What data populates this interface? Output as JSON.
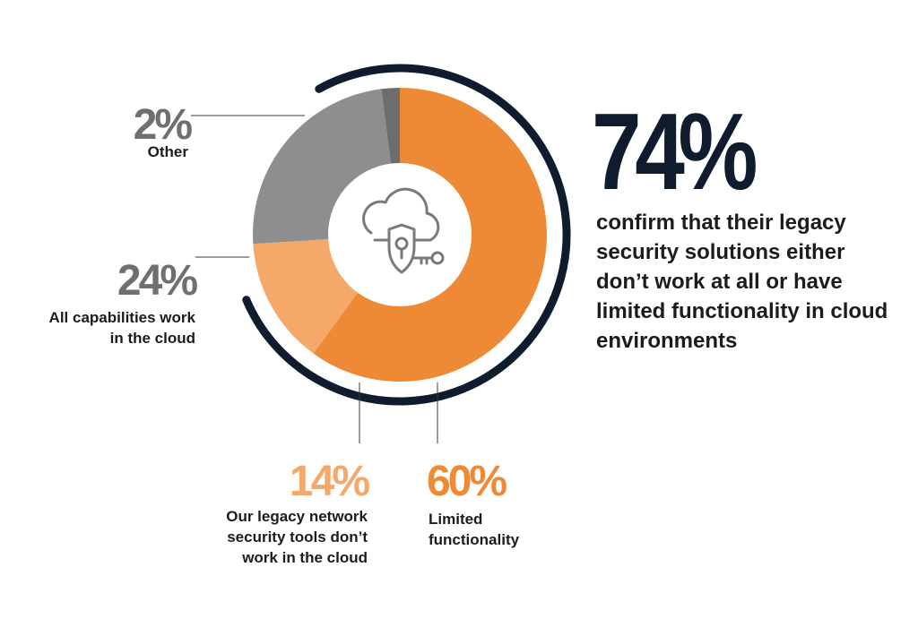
{
  "colors": {
    "orange_dark": "#ee8a35",
    "orange_light": "#f4a869",
    "gray_mid": "#8e8e8e",
    "gray_dark": "#6d6d6d",
    "navy": "#0f1c2e",
    "label_gray": "#6f6f6f"
  },
  "icon": "cloud-security-key-icon",
  "headline": {
    "stat": "74%",
    "text": "confirm that their legacy security solutions either don’t work at all or have limited functionality in cloud environments"
  },
  "chart_data": {
    "type": "pie",
    "title": "",
    "donut": true,
    "slices": [
      {
        "value": 60,
        "label": "60%",
        "description": "Limited functionality",
        "color": "#ee8a35"
      },
      {
        "value": 14,
        "label": "14%",
        "description": "Our legacy network security tools don’t work in the cloud",
        "color": "#f4a869"
      },
      {
        "value": 24,
        "label": "24%",
        "description": "All capabilities work in the cloud",
        "color": "#8e8e8e"
      },
      {
        "value": 2,
        "label": "2%",
        "description": "Other",
        "color": "#6d6d6d"
      }
    ]
  }
}
